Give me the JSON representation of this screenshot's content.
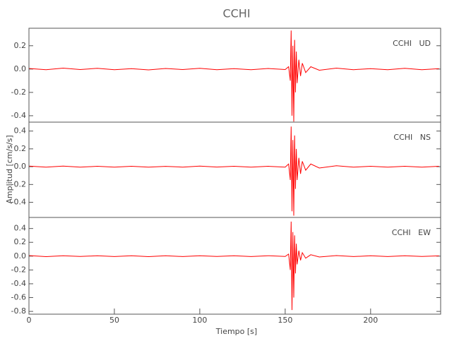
{
  "chart_data": {
    "type": "line",
    "title": "CCHI",
    "xlabel": "Tiempo [s]",
    "ylabel": "Amplitud [cm/s/s]",
    "color": "#ff0000",
    "x": [
      0,
      10,
      20,
      30,
      40,
      50,
      60,
      70,
      80,
      90,
      100,
      110,
      120,
      130,
      140,
      150,
      152,
      153,
      153.5,
      154,
      154.5,
      155,
      155.5,
      156,
      156.5,
      157,
      158,
      159,
      160,
      162,
      165,
      170,
      180,
      190,
      200,
      210,
      220,
      230,
      240
    ],
    "xlim": [
      0,
      241
    ],
    "xticks": [
      0,
      50,
      100,
      150,
      200
    ],
    "series": [
      {
        "name": "CCHI   UD",
        "ylim": [
          -0.455,
          0.35
        ],
        "yticks": [
          0.2,
          {
            "value": 0,
            "label": "0.0"
          },
          -0.2,
          -0.4
        ],
        "values": [
          0.005,
          -0.006,
          0.008,
          -0.004,
          0.006,
          -0.005,
          0.004,
          -0.007,
          0.005,
          -0.004,
          0.006,
          -0.005,
          0.004,
          -0.006,
          0.005,
          -0.004,
          0.02,
          -0.1,
          0.33,
          -0.4,
          0.2,
          -0.45,
          0.25,
          -0.2,
          0.15,
          -0.12,
          0.08,
          -0.06,
          0.05,
          -0.03,
          0.02,
          -0.01,
          0.008,
          -0.005,
          0.004,
          -0.005,
          0.006,
          -0.005,
          0.004
        ]
      },
      {
        "name": "CCHI   NS",
        "ylim": [
          -0.57,
          0.5
        ],
        "yticks": [
          0.4,
          0.2,
          {
            "value": 0,
            "label": "0.0"
          },
          -0.2,
          -0.4
        ],
        "values": [
          0.006,
          -0.005,
          0.007,
          -0.006,
          0.005,
          -0.006,
          0.005,
          -0.006,
          0.004,
          -0.005,
          0.006,
          -0.004,
          0.005,
          -0.006,
          0.005,
          -0.005,
          0.03,
          -0.15,
          0.45,
          -0.5,
          0.3,
          -0.55,
          0.35,
          -0.25,
          0.2,
          -0.15,
          0.1,
          -0.08,
          0.06,
          -0.04,
          0.03,
          -0.015,
          0.01,
          -0.006,
          0.005,
          -0.006,
          0.005,
          -0.006,
          0.005
        ]
      },
      {
        "name": "CCHI   EW",
        "ylim": [
          -0.84,
          0.56
        ],
        "yticks": [
          0.4,
          0.2,
          {
            "value": 0,
            "label": "0.0"
          },
          -0.2,
          -0.4,
          -0.6,
          -0.8
        ],
        "values": [
          0.008,
          -0.007,
          0.006,
          -0.005,
          0.006,
          -0.006,
          0.005,
          -0.007,
          0.005,
          -0.006,
          0.006,
          -0.005,
          0.005,
          -0.006,
          0.006,
          -0.005,
          0.03,
          -0.2,
          0.5,
          -0.78,
          0.35,
          -0.6,
          0.3,
          -0.25,
          0.18,
          -0.12,
          0.08,
          -0.06,
          0.05,
          -0.03,
          0.02,
          -0.012,
          0.008,
          -0.006,
          0.005,
          -0.006,
          0.005,
          -0.005,
          0.004
        ]
      }
    ]
  }
}
